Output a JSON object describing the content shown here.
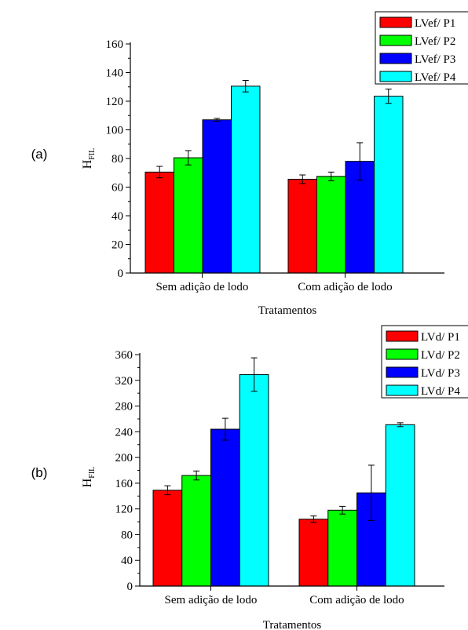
{
  "chart_data": [
    {
      "type": "bar",
      "panel_label": "(a)",
      "categories": [
        "Sem adição de lodo",
        "Com adição de lodo"
      ],
      "series": [
        {
          "name": "LVef/ P1",
          "color": "#ff0000",
          "values": [
            70.5,
            65.5
          ],
          "errors": [
            4,
            3
          ]
        },
        {
          "name": "LVef/ P2",
          "color": "#00ff00",
          "values": [
            80.5,
            67.5
          ],
          "errors": [
            5,
            3
          ]
        },
        {
          "name": "LVef/ P3",
          "color": "#0000ff",
          "values": [
            107,
            78
          ],
          "errors": [
            1,
            13
          ]
        },
        {
          "name": "LVef/ P4",
          "color": "#00ffff",
          "values": [
            130.5,
            123.5
          ],
          "errors": [
            4,
            5
          ]
        }
      ],
      "xlabel": "Tratamentos",
      "ylabel_main": "H",
      "ylabel_sub": "FIL",
      "ylim": [
        0,
        160
      ],
      "yticks": [
        0,
        20,
        40,
        60,
        80,
        100,
        120,
        140,
        160
      ],
      "grid": false,
      "legend": "top-right"
    },
    {
      "type": "bar",
      "panel_label": "(b)",
      "categories": [
        "Sem adição de lodo",
        "Com adição de lodo"
      ],
      "series": [
        {
          "name": "LVd/ P1",
          "color": "#ff0000",
          "values": [
            149,
            104
          ],
          "errors": [
            7,
            5
          ]
        },
        {
          "name": "LVd/ P2",
          "color": "#00ff00",
          "values": [
            172,
            118
          ],
          "errors": [
            7,
            6
          ]
        },
        {
          "name": "LVd/ P3",
          "color": "#0000ff",
          "values": [
            244,
            145
          ],
          "errors": [
            17,
            43
          ]
        },
        {
          "name": "LVd/ P4",
          "color": "#00ffff",
          "values": [
            329,
            251
          ],
          "errors": [
            26,
            3
          ]
        }
      ],
      "xlabel": "Tratamentos",
      "ylabel_main": "H",
      "ylabel_sub": "FIL",
      "ylim": [
        0,
        360
      ],
      "yticks": [
        0,
        40,
        80,
        120,
        160,
        200,
        240,
        280,
        320,
        360
      ],
      "grid": false,
      "legend": "top-right"
    }
  ]
}
